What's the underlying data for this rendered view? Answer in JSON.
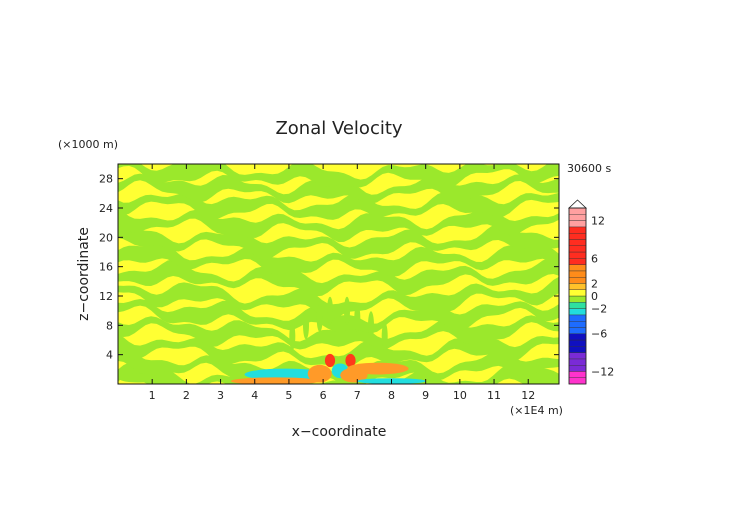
{
  "chart_data": {
    "type": "heatmap",
    "title": "Zonal Velocity",
    "xlabel": "x−coordinate",
    "ylabel": "z−coordinate",
    "x_unit_label": "(×1E4 m)",
    "y_unit_label": "(×1000 m)",
    "time_label": "30600 s",
    "xlim": [
      0,
      12.9
    ],
    "ylim": [
      0,
      30
    ],
    "x_ticks": [
      "1",
      "2",
      "3",
      "4",
      "5",
      "6",
      "7",
      "8",
      "9",
      "10",
      "11",
      "12"
    ],
    "y_ticks": [
      "4",
      "8",
      "12",
      "16",
      "20",
      "24",
      "28"
    ],
    "colorbar": {
      "levels": [
        -14,
        -13,
        -12,
        -11,
        -10,
        -9,
        -8,
        -7,
        -6,
        -5,
        -4,
        -3,
        -2,
        -1,
        0,
        1,
        2,
        3,
        4,
        5,
        6,
        7,
        8,
        9,
        10,
        11,
        12,
        13,
        14
      ],
      "tick_labels": [
        "12",
        "6",
        "2",
        "0",
        "−2",
        "−6",
        "−12"
      ],
      "tick_values": [
        12,
        6,
        2,
        0,
        -2,
        -6,
        -12
      ],
      "colors": {
        "neg_strong": "#ff33cc",
        "neg_mid": "#7a2bd6",
        "neg_dark": "#1010c0",
        "neg_blue": "#1e6cff",
        "neg_cyan": "#22dddd",
        "neg_small": "#2fe0a0",
        "near_zero_neg": "#9be82c",
        "near_zero_pos": "#ffff33",
        "pos_small": "#ffc22a",
        "pos_mid": "#ff8c1a",
        "pos_red": "#ff2d20",
        "pos_light": "#ffa0a0"
      }
    },
    "pattern_colors": {
      "green": "#9be82c",
      "yellow": "#ffff33",
      "orange": "#ff9a28",
      "cyan": "#22dede",
      "red": "#ff3a1a"
    }
  }
}
